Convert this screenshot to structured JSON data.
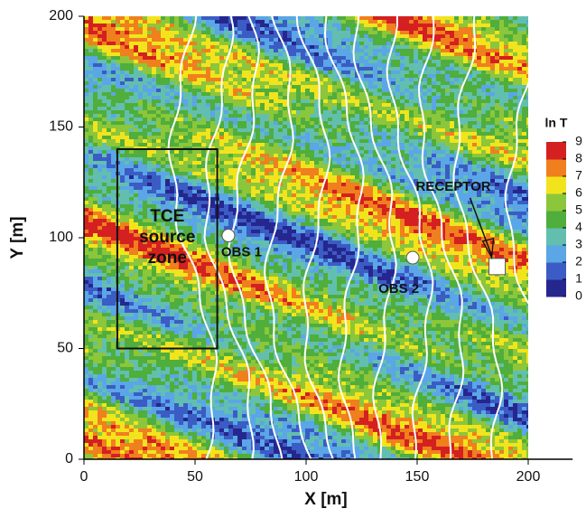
{
  "chart_data": {
    "type": "heatmap",
    "x_label": "X [m]",
    "y_label": "Y [m]",
    "xlim": [
      0,
      220
    ],
    "ylim": [
      0,
      200
    ],
    "xticks": [
      0,
      50,
      100,
      150,
      200
    ],
    "yticks": [
      0,
      50,
      100,
      150,
      200
    ],
    "colorbar": {
      "title": "ln T",
      "ticks": [
        0,
        1,
        2,
        3,
        4,
        5,
        6,
        7,
        8,
        9
      ],
      "colors": [
        "#26268f",
        "#3b5cc4",
        "#5aa6e6",
        "#62bfb0",
        "#4fae3c",
        "#8cc63a",
        "#f2e41c",
        "#f07f1e",
        "#d42020"
      ]
    },
    "source_zone": {
      "label": [
        "TCE",
        "source",
        "zone"
      ],
      "x": [
        15,
        60
      ],
      "y": [
        50,
        140
      ]
    },
    "points": [
      {
        "label": "OBS 1",
        "x": 65,
        "y": 101
      },
      {
        "label": "OBS 2",
        "x": 148,
        "y": 91
      }
    ],
    "receptor": {
      "label": "RECEPTOR",
      "x": 186,
      "y": 87
    }
  }
}
